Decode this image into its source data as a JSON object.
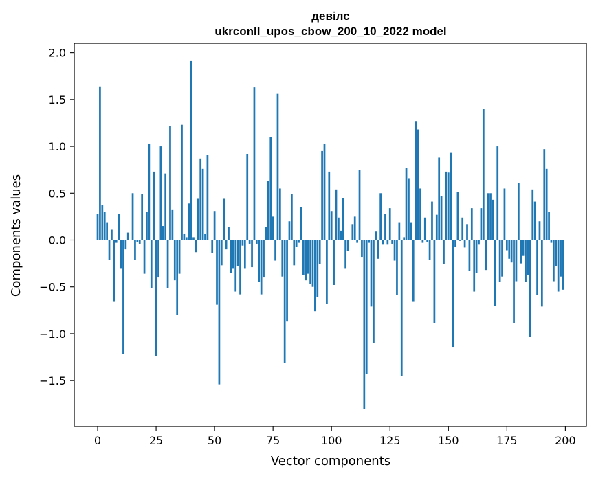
{
  "chart_data": {
    "type": "bar",
    "title": "девілс",
    "subtitle": "ukrconll_upos_cbow_200_10_2022 model",
    "xlabel": "Vector components",
    "ylabel": "Components values",
    "xlim": [
      -10,
      209
    ],
    "ylim": [
      -1.99,
      2.1
    ],
    "xticks": [
      0,
      25,
      50,
      75,
      100,
      125,
      150,
      175,
      200
    ],
    "yticks": [
      -1.5,
      -1.0,
      -0.5,
      0.0,
      0.5,
      1.0,
      1.5,
      2.0
    ],
    "ytick_labels": [
      "−1.5",
      "−1.0",
      "−0.5",
      "0.0",
      "0.5",
      "1.0",
      "1.5",
      "2.0"
    ],
    "grid": false,
    "bar_color": "#1f77b4",
    "values": [
      0.28,
      1.64,
      0.37,
      0.3,
      0.19,
      -0.21,
      0.11,
      -0.66,
      -0.03,
      0.28,
      -0.3,
      -1.22,
      -0.1,
      0.08,
      0.0,
      0.5,
      -0.21,
      -0.02,
      -0.04,
      0.49,
      -0.36,
      0.3,
      1.03,
      -0.51,
      0.73,
      -1.24,
      -0.4,
      1.0,
      0.15,
      0.71,
      -0.51,
      1.22,
      0.32,
      -0.43,
      -0.8,
      -0.36,
      1.23,
      0.07,
      0.03,
      0.39,
      1.91,
      0.03,
      -0.13,
      0.44,
      0.87,
      0.76,
      0.07,
      0.91,
      0.0,
      -0.14,
      0.31,
      -0.69,
      -1.54,
      -0.27,
      0.44,
      -0.1,
      0.14,
      -0.35,
      -0.3,
      -0.55,
      -0.28,
      -0.58,
      -0.06,
      -0.3,
      0.92,
      -0.04,
      -0.29,
      1.63,
      -0.04,
      -0.45,
      -0.58,
      -0.4,
      0.14,
      0.63,
      1.1,
      0.25,
      -0.22,
      1.56,
      0.55,
      -0.39,
      -1.31,
      -0.87,
      0.2,
      0.49,
      -0.27,
      -0.07,
      -0.03,
      0.35,
      -0.37,
      -0.43,
      -0.36,
      -0.47,
      -0.5,
      -0.76,
      -0.61,
      -0.26,
      0.95,
      1.03,
      -0.68,
      0.73,
      0.31,
      -0.48,
      0.54,
      0.24,
      0.1,
      0.45,
      -0.3,
      -0.12,
      0.0,
      0.17,
      0.25,
      -0.03,
      0.75,
      -0.18,
      -1.8,
      -1.43,
      -0.03,
      -0.71,
      -1.1,
      0.09,
      -0.2,
      0.5,
      -0.05,
      0.28,
      -0.05,
      0.34,
      -0.04,
      -0.22,
      -0.59,
      0.19,
      -1.45,
      0.03,
      0.77,
      0.66,
      0.19,
      -0.66,
      1.27,
      1.18,
      0.55,
      -0.03,
      0.24,
      -0.02,
      -0.21,
      0.41,
      -0.89,
      0.27,
      0.88,
      0.47,
      -0.26,
      0.73,
      0.72,
      0.93,
      -1.14,
      -0.07,
      0.51,
      -0.01,
      0.24,
      -0.08,
      0.17,
      -0.33,
      0.34,
      -0.55,
      -0.35,
      -0.05,
      0.34,
      1.4,
      -0.32,
      0.5,
      0.5,
      0.43,
      -0.7,
      1.0,
      -0.45,
      -0.39,
      0.55,
      -0.11,
      -0.2,
      -0.24,
      -0.89,
      -0.44,
      0.61,
      -0.25,
      -0.17,
      -0.45,
      -0.37,
      -1.03,
      0.54,
      0.41,
      -0.59,
      0.2,
      -0.71,
      0.97,
      0.76,
      0.3,
      -0.03,
      -0.44,
      -0.28,
      -0.55,
      -0.39,
      -0.53
    ]
  }
}
